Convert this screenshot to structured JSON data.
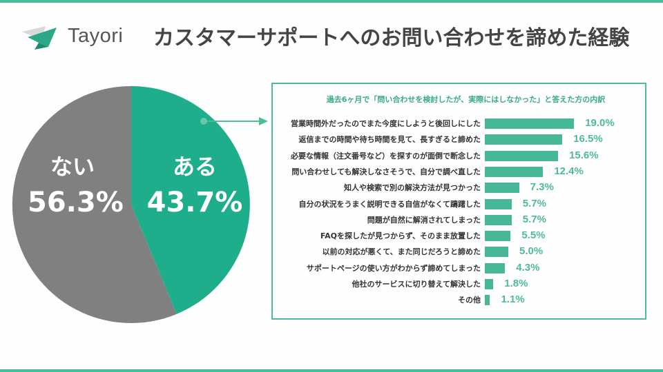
{
  "header": {
    "logo_text": "Tayori",
    "title": "カスタマーサポートへのお問い合わせを諦めた経験"
  },
  "colors": {
    "accent": "#4dbb9b",
    "pie_yes": "#1fae8c",
    "pie_no": "#808080",
    "bar": "#46b898"
  },
  "pie": {
    "yes_label": "ある",
    "yes_value": "43.7%",
    "no_label": "ない",
    "no_value": "56.3%"
  },
  "breakdown": {
    "title": "過去6ヶ月で「問い合わせを検討したが、実際にはしなかった」と答えた方の内訳",
    "rows": [
      {
        "label": "営業時間外だったのでまた今度にしようと後回しにした",
        "value": "19.0%"
      },
      {
        "label": "返信までの時間や待ち時間を見て、長すぎると諦めた",
        "value": "16.5%"
      },
      {
        "label": "必要な情報（注文番号など）を探すのが面倒で断念した",
        "value": "15.6%"
      },
      {
        "label": "問い合わせしても解決しなさそうで、自分で調べ直した",
        "value": "12.4%"
      },
      {
        "label": "知人や検索で別の解決方法が見つかった",
        "value": "7.3%"
      },
      {
        "label": "自分の状況をうまく説明できる自信がなくて躊躇した",
        "value": "5.7%"
      },
      {
        "label": "問題が自然に解消されてしまった",
        "value": "5.7%"
      },
      {
        "label": "FAQを探したが見つからず、そのまま放置した",
        "value": "5.5%"
      },
      {
        "label": "以前の対応が悪くて、また同じだろうと諦めた",
        "value": "5.0%"
      },
      {
        "label": "サポートページの使い方がわからず諦めてしまった",
        "value": "4.3%"
      },
      {
        "label": "他社のサービスに切り替えて解決した",
        "value": "1.8%"
      },
      {
        "label": "その他",
        "value": "1.1%"
      }
    ]
  },
  "chart_data": [
    {
      "type": "pie",
      "title": "カスタマーサポートへのお問い合わせを諦めた経験",
      "categories": [
        "ある",
        "ない"
      ],
      "values": [
        43.7,
        56.3
      ],
      "colors": [
        "#1fae8c",
        "#808080"
      ]
    },
    {
      "type": "bar",
      "orientation": "horizontal",
      "title": "過去6ヶ月で「問い合わせを検討したが、実際にはしなかった」と答えた方の内訳",
      "categories": [
        "営業時間外だったのでまた今度にしようと後回しにした",
        "返信までの時間や待ち時間を見て、長すぎると諦めた",
        "必要な情報（注文番号など）を探すのが面倒で断念した",
        "問い合わせしても解決しなさそうで、自分で調べ直した",
        "知人や検索で別の解決方法が見つかった",
        "自分の状況をうまく説明できる自信がなくて躊躇した",
        "問題が自然に解消されてしまった",
        "FAQを探したが見つからず、そのまま放置した",
        "以前の対応が悪くて、また同じだろうと諦めた",
        "サポートページの使い方がわからず諦めてしまった",
        "他社のサービスに切り替えて解決した",
        "その他"
      ],
      "values": [
        19.0,
        16.5,
        15.6,
        12.4,
        7.3,
        5.7,
        5.7,
        5.5,
        5.0,
        4.3,
        1.8,
        1.1
      ],
      "unit": "%",
      "xlabel": "",
      "ylabel": ""
    }
  ]
}
